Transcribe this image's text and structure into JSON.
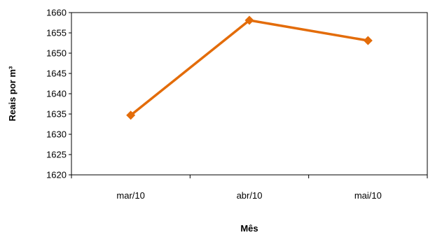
{
  "chart_data": {
    "type": "line",
    "categories": [
      "mar/10",
      "abr/10",
      "mai/10"
    ],
    "series": [
      {
        "values": [
          1634.7,
          1658.1,
          1653.1
        ],
        "color": "#E36C0A",
        "marker": "diamond"
      }
    ],
    "xlabel": "Mês",
    "ylabel": "Reais por m³",
    "ylim": [
      1620,
      1660
    ],
    "yticks": [
      1620,
      1625,
      1630,
      1635,
      1640,
      1645,
      1650,
      1655,
      1660
    ],
    "grid": false,
    "legend": false
  }
}
